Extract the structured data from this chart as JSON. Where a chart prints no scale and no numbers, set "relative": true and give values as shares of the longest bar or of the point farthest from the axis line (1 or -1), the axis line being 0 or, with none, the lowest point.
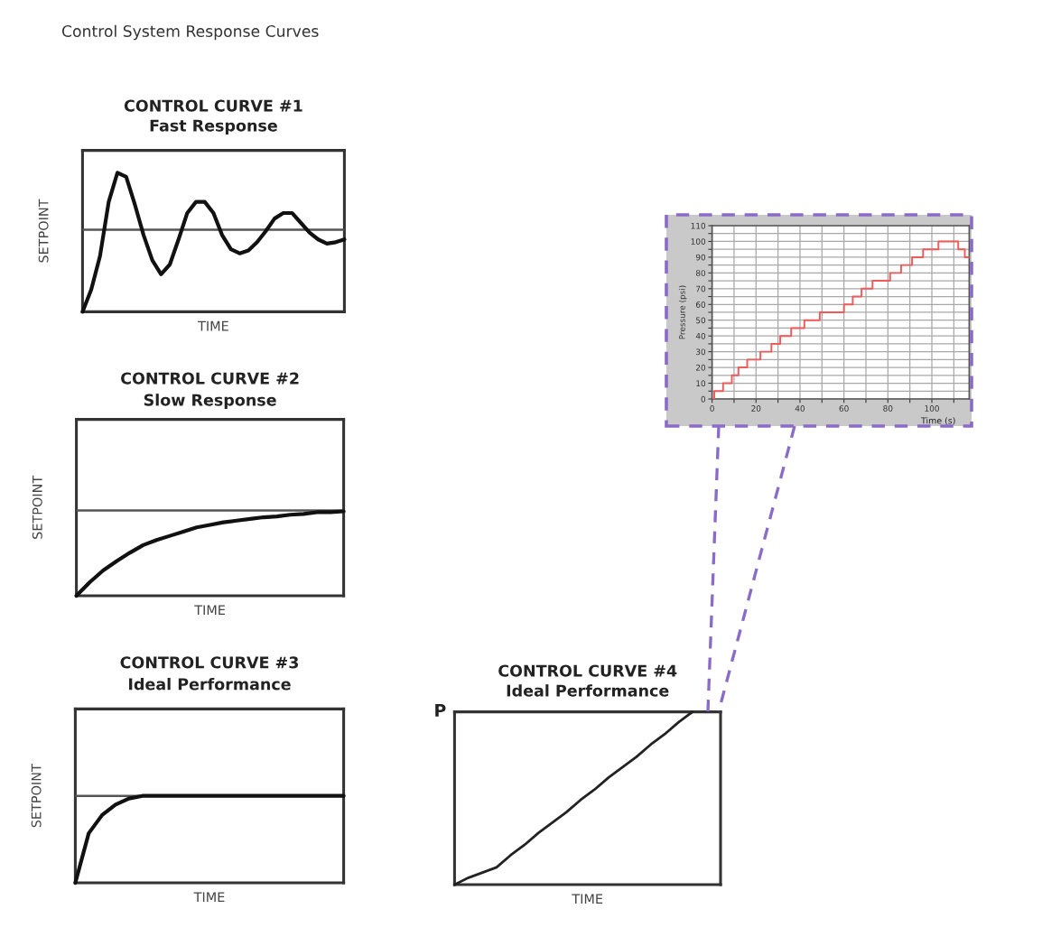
{
  "chart_data": [
    {
      "type": "line",
      "title": "CONTROL CURVE #1",
      "subtitle": "Fast Response",
      "xlabel": "TIME",
      "ylabel": "SETPOINT",
      "annotations": [
        "Control System Response Curves"
      ],
      "relative": true,
      "categories": [
        null,
        null,
        null,
        null,
        null,
        null,
        null,
        null,
        null,
        null,
        null,
        null,
        null,
        null,
        null,
        null,
        null,
        null,
        null,
        null,
        null,
        null,
        null,
        null,
        null,
        null,
        null,
        null,
        null,
        null,
        null
      ],
      "series": [
        {
          "color": "#111111",
          "values": [
            0,
            0.16,
            0.4,
            0.79,
            1.0,
            0.97,
            0.77,
            0.55,
            0.37,
            0.27,
            0.34,
            0.52,
            0.71,
            0.79,
            0.79,
            0.71,
            0.55,
            0.45,
            0.42,
            0.44,
            0.5,
            0.58,
            0.67,
            0.71,
            0.71,
            0.64,
            0.57,
            0.52,
            0.49,
            0.5,
            0.52
          ]
        }
      ],
      "ref_lines": [
        {
          "axis": "y",
          "value": 0.59,
          "color": "#555555"
        }
      ]
    },
    {
      "type": "line",
      "title": "CONTROL CURVE #2",
      "subtitle": "Slow Response",
      "xlabel": "TIME",
      "ylabel": "SETPOINT",
      "relative": true,
      "categories": [
        null,
        null,
        null,
        null,
        null,
        null,
        null,
        null,
        null,
        null,
        null,
        null,
        null,
        null,
        null,
        null,
        null,
        null,
        null,
        null,
        null
      ],
      "series": [
        {
          "color": "#111111",
          "values": [
            0,
            0.16,
            0.3,
            0.41,
            0.51,
            0.6,
            0.66,
            0.71,
            0.76,
            0.81,
            0.84,
            0.87,
            0.89,
            0.91,
            0.93,
            0.94,
            0.96,
            0.97,
            0.99,
            0.99,
            1.0
          ]
        }
      ],
      "ref_lines": [
        {
          "axis": "y",
          "value": 1.01,
          "color": "#555555"
        }
      ]
    },
    {
      "type": "line",
      "title": "CONTROL CURVE #3",
      "subtitle": "Ideal Performance",
      "xlabel": "TIME",
      "ylabel": "SETPOINT",
      "relative": true,
      "categories": [
        null,
        null,
        null,
        null,
        null,
        null,
        null,
        null,
        null,
        null,
        null,
        null,
        null,
        null,
        null,
        null,
        null,
        null,
        null,
        null,
        null
      ],
      "series": [
        {
          "color": "#111111",
          "values": [
            0,
            0.57,
            0.78,
            0.9,
            0.97,
            1.0,
            1.0,
            1.0,
            1.0,
            1.0,
            1.0,
            1.0,
            1.0,
            1.0,
            1.0,
            1.0,
            1.0,
            1.0,
            1.0,
            1.0,
            1.0
          ]
        }
      ],
      "ref_lines": [
        {
          "axis": "y",
          "value": 1.0,
          "color": "#555555"
        }
      ]
    },
    {
      "type": "line",
      "title": "CONTROL CURVE #4",
      "subtitle": "Ideal Performance",
      "xlabel": "TIME",
      "ylabel": "P",
      "relative": true,
      "categories": [
        null,
        null,
        null,
        null,
        null,
        null,
        null,
        null,
        null,
        null,
        null,
        null,
        null,
        null,
        null,
        null,
        null,
        null,
        null,
        null
      ],
      "series": [
        {
          "color": "#222222",
          "values": [
            0,
            0.04,
            0.07,
            0.1,
            0.17,
            0.23,
            0.3,
            0.36,
            0.42,
            0.49,
            0.55,
            0.62,
            0.68,
            0.74,
            0.81,
            0.87,
            0.94,
            1.0,
            null,
            null
          ]
        }
      ]
    },
    {
      "type": "step",
      "xlabel": "Time (s)",
      "ylabel": "Pressure (psi)",
      "x": [
        0,
        1,
        5,
        9,
        12,
        16,
        22,
        27,
        31,
        36,
        42,
        49,
        60,
        64,
        68,
        73,
        81,
        86,
        91,
        96,
        103,
        112,
        115,
        117
      ],
      "series": [
        {
          "color": "#f05a5a",
          "values": [
            0,
            5,
            10,
            15,
            20,
            25,
            30,
            35,
            40,
            45,
            50,
            55,
            60,
            65,
            70,
            75,
            80,
            85,
            90,
            95,
            100,
            95,
            90,
            90
          ]
        }
      ],
      "xlim": [
        0,
        117
      ],
      "xticks": [
        0,
        {
          "value": 10,
          "label": null
        },
        20,
        {
          "value": 30,
          "label": null
        },
        40,
        {
          "value": 50,
          "label": null
        },
        60,
        {
          "value": 70,
          "label": null
        },
        80,
        {
          "value": 90,
          "label": null
        },
        100,
        {
          "value": 110,
          "label": null
        }
      ],
      "ylim": [
        0,
        110
      ],
      "yticks": [
        0,
        {
          "value": 5,
          "label": null
        },
        10,
        {
          "value": 15,
          "label": null
        },
        20,
        {
          "value": 25,
          "label": null
        },
        30,
        {
          "value": 35,
          "label": null
        },
        40,
        {
          "value": 45,
          "label": null
        },
        50,
        {
          "value": 55,
          "label": null
        },
        60,
        {
          "value": 65,
          "label": null
        },
        70,
        {
          "value": 75,
          "label": null
        },
        80,
        {
          "value": 85,
          "label": null
        },
        90,
        {
          "value": 95,
          "label": null
        },
        100,
        {
          "value": 105,
          "label": null
        },
        110
      ],
      "grid": true
    }
  ]
}
